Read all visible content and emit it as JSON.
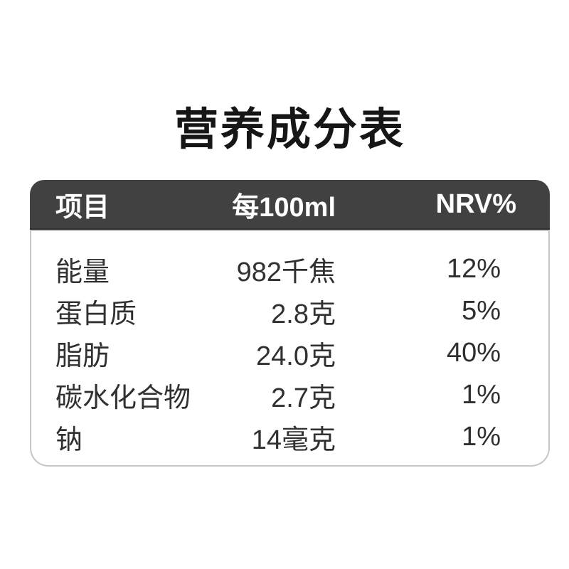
{
  "page": {
    "title": "营养成分表"
  },
  "table": {
    "header": {
      "item": "项目",
      "amount": "每100ml",
      "nrv": "NRV%"
    },
    "rows": [
      {
        "item": "能量",
        "amount": "982千焦",
        "nrv": "12%"
      },
      {
        "item": "蛋白质",
        "amount": "2.8克",
        "nrv": "5%"
      },
      {
        "item": "脂肪",
        "amount": "24.0克",
        "nrv": "40%"
      },
      {
        "item": "碳水化合物",
        "amount": "2.7克",
        "nrv": "1%"
      },
      {
        "item": "钠",
        "amount": "14毫克",
        "nrv": "1%"
      }
    ],
    "colors": {
      "header_bg": "#414141",
      "header_text": "#ffffff",
      "body_text": "#303030",
      "border": "#c6c6c6"
    }
  }
}
